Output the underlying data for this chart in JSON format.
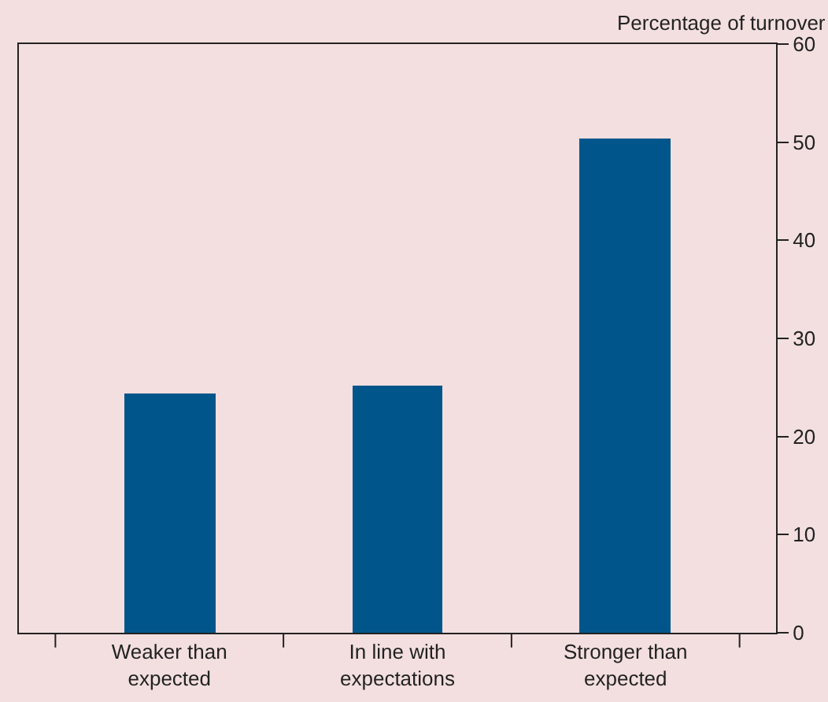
{
  "chart_data": {
    "type": "bar",
    "ylabel": "Percentage of turnover",
    "categories": [
      "Weaker than\nexpected",
      "In line with\nexpectations",
      "Stronger than\nexpected"
    ],
    "values": [
      24.4,
      25.2,
      50.4
    ],
    "color": "#00568a",
    "ylim": [
      0,
      60
    ],
    "yticks": [
      0,
      10,
      20,
      30,
      40,
      50,
      60
    ]
  }
}
